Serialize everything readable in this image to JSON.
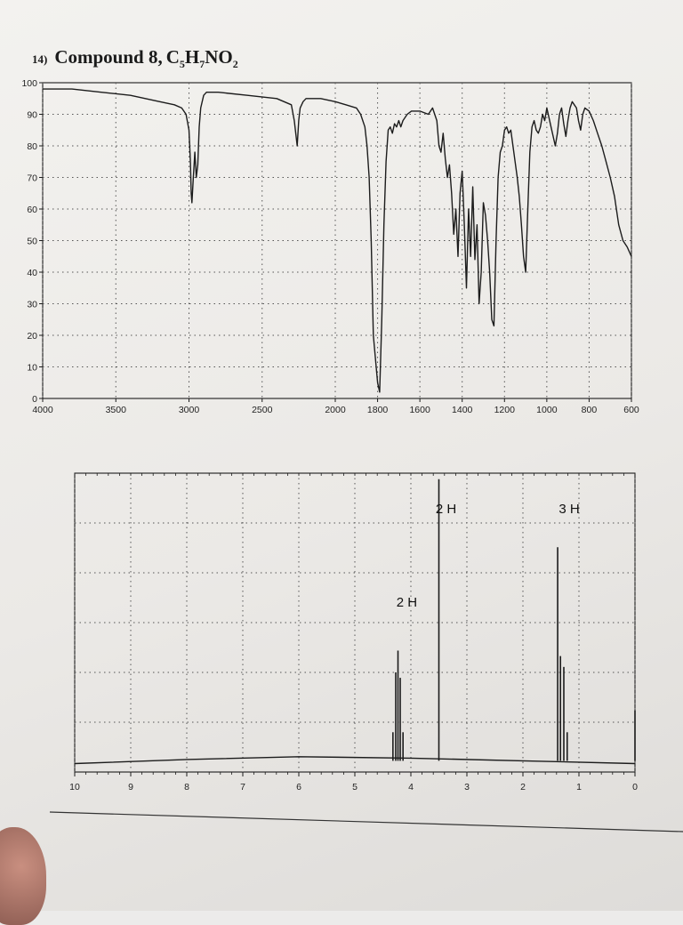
{
  "header": {
    "number": "14)",
    "compound": "Compound 8,",
    "formula": [
      {
        "t": "C",
        "sub": "5"
      },
      {
        "t": "H",
        "sub": "7"
      },
      {
        "t": "NO",
        "sub": "2"
      }
    ]
  },
  "colors": {
    "ink": "#1c1c1c",
    "grid": "#555555",
    "paper": "#f0efec"
  },
  "chart_data": [
    {
      "type": "line",
      "name": "IR spectrum",
      "xlabel": "",
      "ylabel": "",
      "xlim": [
        4000,
        600
      ],
      "ylim": [
        0,
        100
      ],
      "grid": true,
      "x_ticks": [
        "4000",
        "3500",
        "3000",
        "2500",
        "2000",
        "1800",
        "1600",
        "1400",
        "1200",
        "1000",
        "800",
        "600"
      ],
      "y_ticks": [
        "0",
        "10",
        "20",
        "30",
        "40",
        "50",
        "60",
        "70",
        "80",
        "90",
        "100"
      ],
      "x": [
        4000,
        3800,
        3600,
        3400,
        3200,
        3100,
        3050,
        3020,
        3000,
        2990,
        2985,
        2980,
        2970,
        2960,
        2950,
        2940,
        2930,
        2920,
        2900,
        2880,
        2800,
        2600,
        2400,
        2300,
        2280,
        2260,
        2250,
        2240,
        2220,
        2200,
        2100,
        2000,
        1950,
        1900,
        1880,
        1860,
        1850,
        1840,
        1830,
        1820,
        1800,
        1790,
        1780,
        1770,
        1760,
        1750,
        1740,
        1730,
        1720,
        1710,
        1700,
        1690,
        1680,
        1660,
        1640,
        1600,
        1560,
        1540,
        1520,
        1510,
        1500,
        1490,
        1480,
        1470,
        1460,
        1450,
        1440,
        1430,
        1420,
        1410,
        1400,
        1390,
        1380,
        1370,
        1360,
        1350,
        1340,
        1330,
        1320,
        1310,
        1300,
        1290,
        1280,
        1270,
        1260,
        1250,
        1240,
        1230,
        1220,
        1210,
        1200,
        1190,
        1180,
        1170,
        1160,
        1150,
        1140,
        1130,
        1120,
        1110,
        1100,
        1090,
        1080,
        1070,
        1060,
        1050,
        1040,
        1030,
        1020,
        1010,
        1000,
        980,
        960,
        950,
        940,
        930,
        920,
        910,
        900,
        890,
        880,
        860,
        850,
        840,
        830,
        820,
        800,
        780,
        760,
        740,
        720,
        700,
        680,
        660,
        640,
        620,
        600
      ],
      "y": [
        98,
        98,
        97,
        96,
        94,
        93,
        92,
        90,
        85,
        75,
        65,
        62,
        70,
        78,
        70,
        74,
        86,
        92,
        96,
        97,
        97,
        96,
        95,
        93,
        88,
        80,
        88,
        92,
        94,
        95,
        95,
        94,
        93,
        92,
        90,
        86,
        80,
        70,
        50,
        20,
        5,
        2,
        25,
        55,
        75,
        85,
        86,
        84,
        87,
        86,
        88,
        86,
        88,
        90,
        91,
        91,
        90,
        92,
        88,
        80,
        78,
        84,
        76,
        70,
        74,
        65,
        52,
        60,
        45,
        65,
        72,
        55,
        35,
        60,
        45,
        67,
        44,
        55,
        30,
        40,
        62,
        58,
        50,
        40,
        25,
        23,
        50,
        70,
        78,
        80,
        85,
        86,
        84,
        85,
        80,
        75,
        70,
        64,
        55,
        45,
        40,
        60,
        78,
        86,
        88,
        85,
        84,
        86,
        90,
        88,
        92,
        86,
        80,
        84,
        90,
        92,
        87,
        83,
        88,
        92,
        94,
        92,
        88,
        85,
        90,
        92,
        91,
        88,
        84,
        80,
        75,
        70,
        64,
        55,
        50,
        48,
        45
      ]
    },
    {
      "type": "line",
      "name": "1H NMR spectrum",
      "xlabel": "",
      "ylabel": "",
      "xlim": [
        10,
        0
      ],
      "ylim": [
        0,
        100
      ],
      "grid": true,
      "x_ticks": [
        "10",
        "9",
        "8",
        "7",
        "6",
        "5",
        "4",
        "3",
        "2",
        "1",
        "0"
      ],
      "integrations": [
        {
          "text": "2 H",
          "ppm": 4.2
        },
        {
          "text": "2 H",
          "ppm": 3.5
        },
        {
          "text": "3 H",
          "ppm": 1.3
        }
      ],
      "peaks": [
        {
          "ppm": 4.32,
          "height": 12
        },
        {
          "ppm": 4.27,
          "height": 34
        },
        {
          "ppm": 4.23,
          "height": 42
        },
        {
          "ppm": 4.19,
          "height": 32
        },
        {
          "ppm": 4.14,
          "height": 12
        },
        {
          "ppm": 3.5,
          "height": 105
        },
        {
          "ppm": 1.38,
          "height": 80
        },
        {
          "ppm": 1.33,
          "height": 40
        },
        {
          "ppm": 1.27,
          "height": 36
        },
        {
          "ppm": 1.21,
          "height": 12
        },
        {
          "ppm": 0.0,
          "height": 20
        }
      ],
      "baseline": [
        [
          10,
          0.5
        ],
        [
          8,
          2
        ],
        [
          6,
          3
        ],
        [
          4,
          2.5
        ],
        [
          2,
          1.5
        ],
        [
          0,
          0.5
        ]
      ]
    }
  ]
}
